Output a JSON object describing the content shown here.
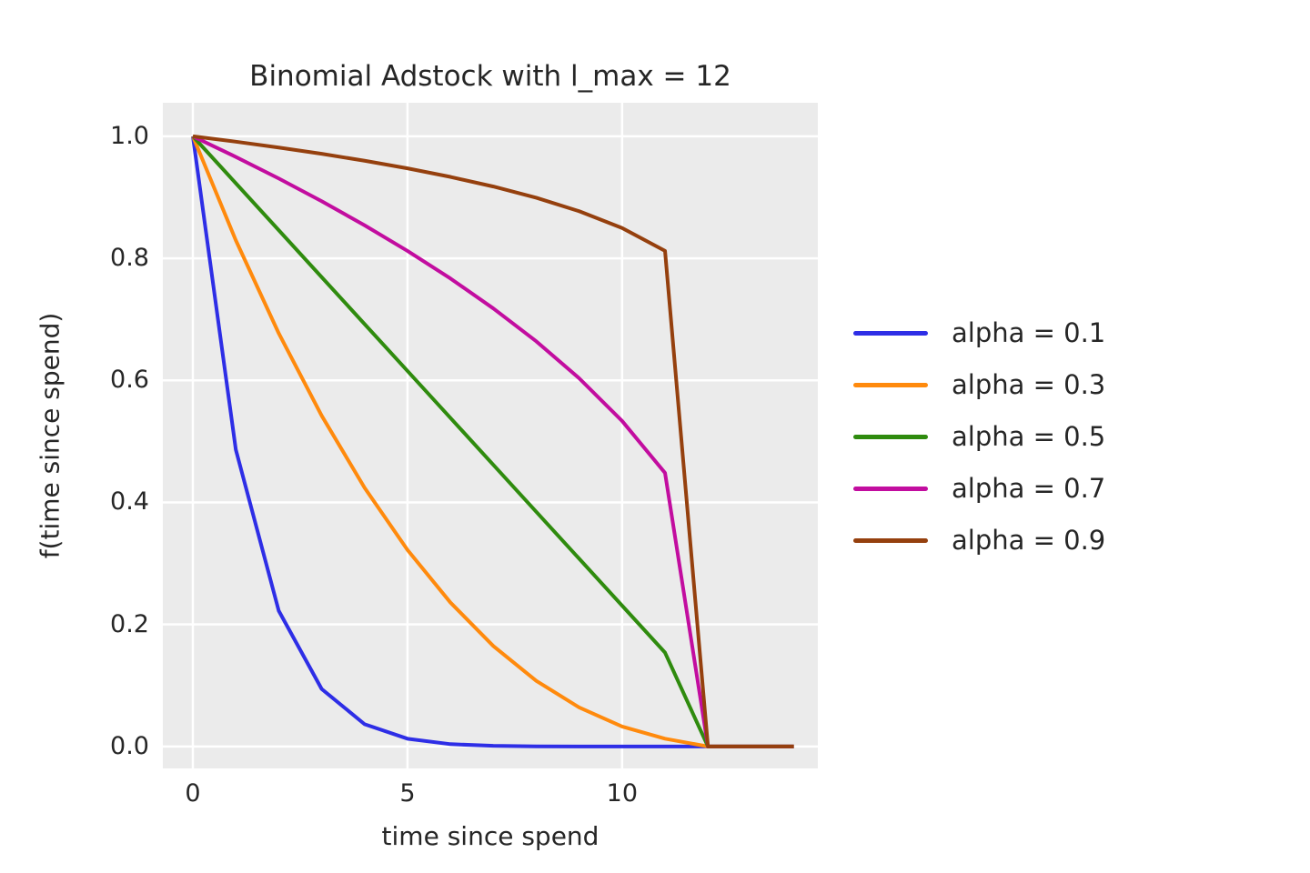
{
  "figure": {
    "background": "#ffffff",
    "plot_background": "#ebebeb",
    "grid_color": "#ffffff",
    "text_color": "#262626"
  },
  "chart_data": {
    "type": "line",
    "title": "Binomial Adstock with l_max = 12",
    "xlabel": "time since spend",
    "ylabel": "f(time since spend)",
    "grid": true,
    "legend_position": "center right, outside axes",
    "xlim": [
      -0.7,
      14.56
    ],
    "ylim": [
      -0.036,
      1.055
    ],
    "xticks": [
      {
        "v": 0,
        "label": "0"
      },
      {
        "v": 5,
        "label": "5"
      },
      {
        "v": 10,
        "label": "10"
      }
    ],
    "yticks": [
      {
        "v": 0.0,
        "label": "0.0"
      },
      {
        "v": 0.2,
        "label": "0.2"
      },
      {
        "v": 0.4,
        "label": "0.4"
      },
      {
        "v": 0.6,
        "label": "0.6"
      },
      {
        "v": 0.8,
        "label": "0.8"
      },
      {
        "v": 1.0,
        "label": "1.0"
      }
    ],
    "x": [
      0,
      1,
      2,
      3,
      4,
      5,
      6,
      7,
      8,
      9,
      10,
      11,
      12,
      13,
      14
    ],
    "series": [
      {
        "name": "alpha = 0.1",
        "color": "#2e2ee6",
        "values": [
          1.0,
          0.4865,
          0.2224,
          0.0942,
          0.0365,
          0.0127,
          0.0038,
          0.001,
          0.0002,
          0.0,
          0.0,
          0.0,
          0.0,
          0.0,
          0.0
        ]
      },
      {
        "name": "alpha = 0.3",
        "color": "#ff8a0d",
        "values": [
          1.0,
          0.8296,
          0.6772,
          0.5422,
          0.424,
          0.3221,
          0.2359,
          0.1646,
          0.1076,
          0.0639,
          0.0327,
          0.0127,
          0.0,
          0.0,
          0.0
        ]
      },
      {
        "name": "alpha = 0.5",
        "color": "#2f8b0e",
        "values": [
          1.0,
          0.9231,
          0.8462,
          0.7692,
          0.6923,
          0.6154,
          0.5385,
          0.4615,
          0.3846,
          0.3077,
          0.2308,
          0.1538,
          0.0,
          0.0,
          0.0
        ]
      },
      {
        "name": "alpha = 0.7",
        "color": "#c20d9f",
        "values": [
          1.0,
          0.9663,
          0.9309,
          0.8936,
          0.8542,
          0.8121,
          0.767,
          0.7179,
          0.664,
          0.6034,
          0.5334,
          0.4483,
          0.0,
          0.0,
          0.0
        ]
      },
      {
        "name": "alpha = 0.9",
        "color": "#95400e",
        "values": [
          1.0,
          0.9912,
          0.9816,
          0.9713,
          0.96,
          0.9475,
          0.9335,
          0.9177,
          0.8993,
          0.8772,
          0.8497,
          0.8122,
          0.0,
          0.0,
          0.0
        ]
      }
    ]
  }
}
